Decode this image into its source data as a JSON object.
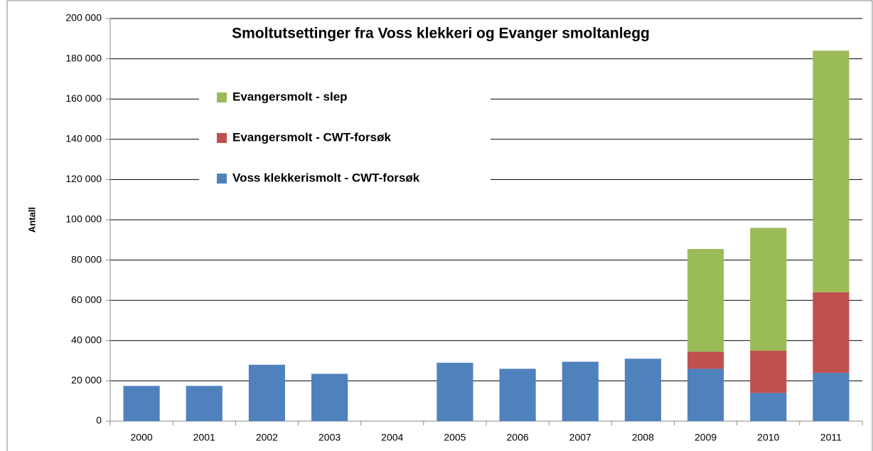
{
  "chart_data": {
    "type": "stacked_bar",
    "title": "Smoltutsettinger fra Voss klekkeri og Evanger smoltanlegg",
    "y_label": "Antall",
    "categories": [
      "2000",
      "2001",
      "2002",
      "2003",
      "2004",
      "2005",
      "2006",
      "2007",
      "2008",
      "2009",
      "2010",
      "2011"
    ],
    "series": [
      {
        "name": "Voss klekkerismolt - CWT-forsøk",
        "color": "#4f81bd",
        "values": [
          17500,
          17500,
          28000,
          23500,
          0,
          29000,
          26000,
          29500,
          31000,
          26000,
          14000,
          24000
        ]
      },
      {
        "name": "Evangersmolt - CWT-forsøk",
        "color": "#c0504d",
        "values": [
          0,
          0,
          0,
          0,
          0,
          0,
          0,
          0,
          0,
          8500,
          21000,
          40000
        ]
      },
      {
        "name": "Evangersmolt - slep",
        "color": "#9bbb59",
        "values": [
          0,
          0,
          0,
          0,
          0,
          0,
          0,
          0,
          0,
          51000,
          61000,
          120000
        ]
      }
    ],
    "ylim": [
      0,
      200000
    ],
    "yticks": [
      0,
      {
        "value": 20000,
        "label": "20 000"
      },
      {
        "value": 40000,
        "label": "40 000"
      },
      {
        "value": 60000,
        "label": "60 000"
      },
      {
        "value": 80000,
        "label": "80 000"
      },
      {
        "value": 100000,
        "label": "100 000"
      },
      {
        "value": 120000,
        "label": "120 000"
      },
      {
        "value": 140000,
        "label": "140 000"
      },
      {
        "value": 160000,
        "label": "160 000"
      },
      {
        "value": 180000,
        "label": "180 000"
      },
      {
        "value": 200000,
        "label": "200 000"
      }
    ],
    "grid": true
  }
}
